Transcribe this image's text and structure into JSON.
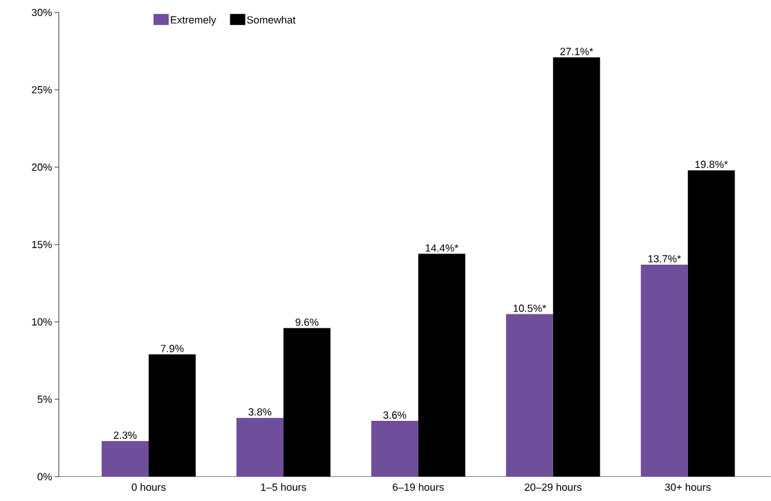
{
  "chart_data": {
    "type": "bar",
    "categories": [
      "0 hours",
      "1–5 hours",
      "6–19 hours",
      "20–29 hours",
      "30+ hours"
    ],
    "series": [
      {
        "name": "Extremely",
        "color": "#6f4e9c",
        "values": [
          2.3,
          3.8,
          3.6,
          10.5,
          13.7
        ],
        "value_labels": [
          "2.3%",
          "3.8%",
          "3.6%",
          "10.5%*",
          "13.7%*"
        ]
      },
      {
        "name": "Somewhat",
        "color": "#000000",
        "values": [
          7.9,
          9.6,
          14.4,
          27.1,
          19.8
        ],
        "value_labels": [
          "7.9%",
          "9.6%",
          "14.4%*",
          "27.1%*",
          "19.8%*"
        ]
      }
    ],
    "ylim": [
      0,
      30
    ],
    "yticks": [
      {
        "value": 0,
        "label": "0%"
      },
      {
        "value": 5,
        "label": "5%"
      },
      {
        "value": 10,
        "label": "10%"
      },
      {
        "value": 15,
        "label": "15%"
      },
      {
        "value": 20,
        "label": "20%"
      },
      {
        "value": 25,
        "label": "25%"
      },
      {
        "value": 30,
        "label": "30%"
      }
    ],
    "grid": false,
    "legend": "top left"
  }
}
